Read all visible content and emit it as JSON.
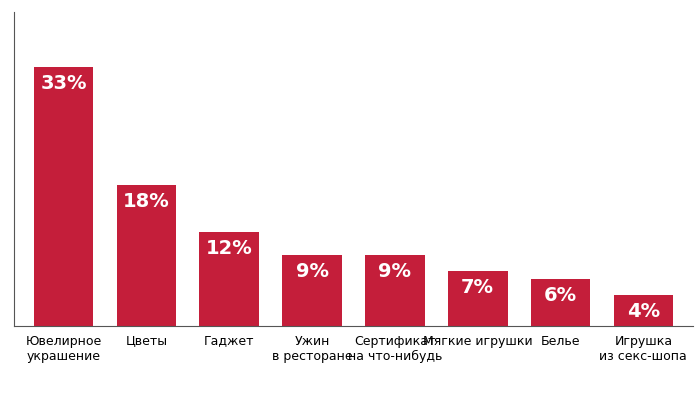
{
  "chart_data": {
    "type": "bar",
    "categories": [
      "Ювелирное\nукрашение",
      "Цветы",
      "Гаджет",
      "Ужин\nв ресторане",
      "Сертификат\nна что-нибудь",
      "Мягкие игрушки",
      "Белье",
      "Игрушка\nиз секс-шопа"
    ],
    "values": [
      33,
      18,
      12,
      9,
      9,
      7,
      6,
      4
    ],
    "value_labels": [
      "33%",
      "18%",
      "12%",
      "9%",
      "9%",
      "7%",
      "6%",
      "4%"
    ],
    "color": "#c41e3a",
    "ylim": [
      0,
      40
    ],
    "yticks": [],
    "data_labels": true,
    "tick_labels": "x",
    "grid": false
  }
}
